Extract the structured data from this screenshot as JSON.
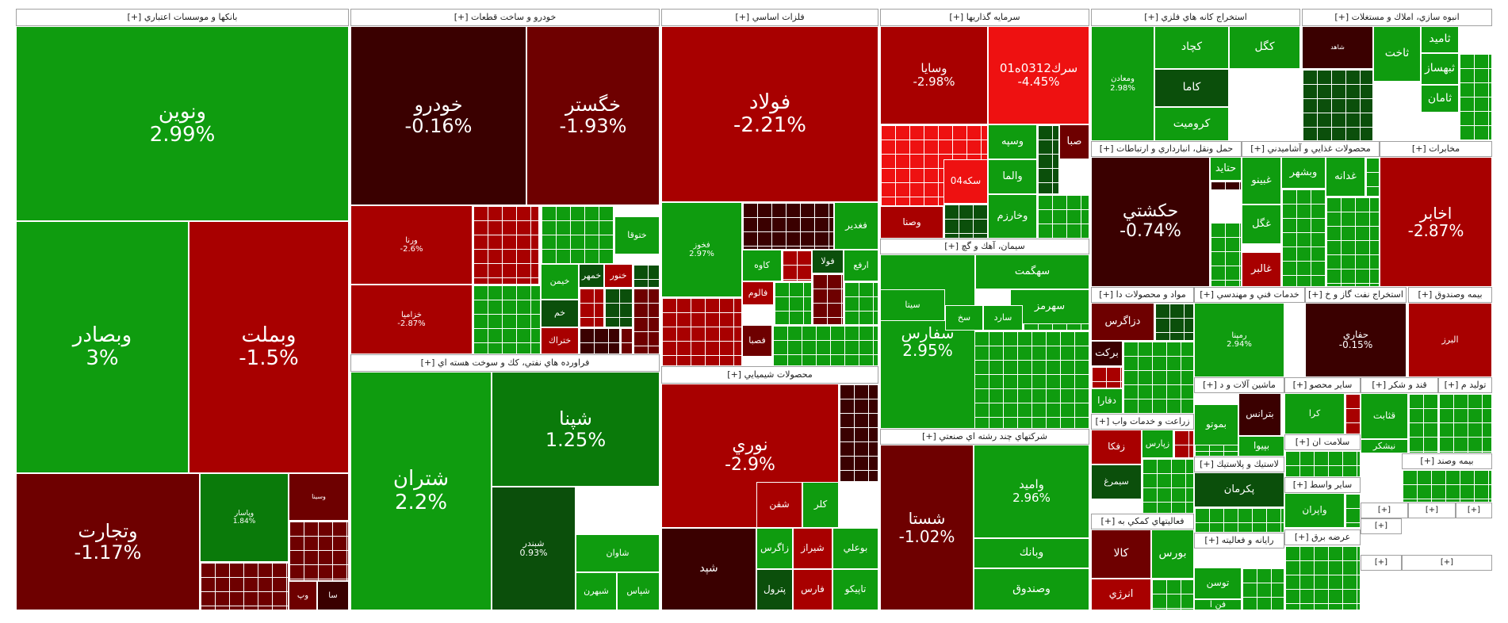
{
  "chart_data": {
    "type": "treemap",
    "colors": {
      "strong_up": "#0f9c0f",
      "mid_up": "#0a7a0a",
      "weak_up": "#0b4f0b",
      "strong_down": "#ee1111",
      "mid_down": "#a80000",
      "weak_down": "#6e0000",
      "flat_down": "#3a0000"
    },
    "sectors": [
      {
        "name": "بانكها و موسسات اعتباري [+]",
        "tiles": [
          {
            "symbol": "ونوين",
            "change": "2.99%",
            "color": "strong_up"
          },
          {
            "symbol": "وبصادر",
            "change": "3%",
            "color": "strong_up"
          },
          {
            "symbol": "وبملت",
            "change": "-1.5%",
            "color": "mid_down"
          },
          {
            "symbol": "وتجارت",
            "change": "-1.17%",
            "color": "weak_down"
          },
          {
            "symbol": "وپاسار",
            "change": "1.84%",
            "color": "mid_up"
          },
          {
            "symbol": "وسينا",
            "change": "",
            "color": "weak_down"
          },
          {
            "symbol": "وپ",
            "change": "",
            "color": "weak_down"
          },
          {
            "symbol": "سا",
            "change": "",
            "color": "flat_down"
          }
        ]
      },
      {
        "name": "خودرو و ساخت قطعات [+]",
        "tiles": [
          {
            "symbol": "خودرو",
            "change": "-0.16%",
            "color": "flat_down"
          },
          {
            "symbol": "خگستر",
            "change": "-1.93%",
            "color": "weak_down"
          },
          {
            "symbol": "ورنا",
            "change": "-2.6%",
            "color": "mid_down"
          },
          {
            "symbol": "خزامیا",
            "change": "-2.87%",
            "color": "mid_down"
          },
          {
            "symbol": "ختوقا",
            "change": "",
            "color": "strong_up"
          },
          {
            "symbol": "خيمن",
            "change": "",
            "color": "strong_up"
          },
          {
            "symbol": "خمهر",
            "change": "",
            "color": "weak_up"
          },
          {
            "symbol": "خنور",
            "change": "",
            "color": "mid_down"
          },
          {
            "symbol": "خم",
            "change": "",
            "color": "weak_up"
          },
          {
            "symbol": "ختراك",
            "change": "",
            "color": "mid_down"
          }
        ]
      },
      {
        "name": "فراورده هاي نفتي، كك و سوخت هسته اي [+]",
        "tiles": [
          {
            "symbol": "شتران",
            "change": "2.2%",
            "color": "strong_up"
          },
          {
            "symbol": "شپنا",
            "change": "1.25%",
            "color": "mid_up"
          },
          {
            "symbol": "شبندر",
            "change": "0.93%",
            "color": "weak_up"
          },
          {
            "symbol": "شاوان",
            "change": "",
            "color": "strong_up"
          },
          {
            "symbol": "شبهرن",
            "change": "",
            "color": "strong_up"
          },
          {
            "symbol": "شپاس",
            "change": "",
            "color": "strong_up"
          }
        ]
      },
      {
        "name": "فلزات اساسي [+]",
        "tiles": [
          {
            "symbol": "فولاد",
            "change": "-2.21%",
            "color": "mid_down"
          },
          {
            "symbol": "فخوز",
            "change": "2.97%",
            "color": "strong_up"
          },
          {
            "symbol": "فغدير",
            "change": "",
            "color": "strong_up"
          },
          {
            "symbol": "كاوه",
            "change": "",
            "color": "strong_up"
          },
          {
            "symbol": "فالوم",
            "change": "",
            "color": "mid_down"
          },
          {
            "symbol": "فولا",
            "change": "",
            "color": "weak_up"
          },
          {
            "symbol": "ارفع",
            "change": "",
            "color": "strong_up"
          },
          {
            "symbol": "فصبا",
            "change": "",
            "color": "weak_down"
          }
        ]
      },
      {
        "name": "محصولات شيميايي [+]",
        "tiles": [
          {
            "symbol": "نوري",
            "change": "-2.9%",
            "color": "mid_down"
          },
          {
            "symbol": "شپد",
            "change": "",
            "color": "flat_down"
          },
          {
            "symbol": "زاگرس",
            "change": "",
            "color": "strong_up"
          },
          {
            "symbol": "شيراز",
            "change": "",
            "color": "mid_down"
          },
          {
            "symbol": "پترول",
            "change": "",
            "color": "weak_up"
          },
          {
            "symbol": "فارس",
            "change": "",
            "color": "mid_down"
          },
          {
            "symbol": "بوعلي",
            "change": "",
            "color": "strong_up"
          },
          {
            "symbol": "تاپيكو",
            "change": "",
            "color": "strong_up"
          },
          {
            "symbol": "شفن",
            "change": "",
            "color": "mid_down"
          },
          {
            "symbol": "كلر",
            "change": "",
            "color": "strong_up"
          },
          {
            "symbol": "شغارس",
            "change": "",
            "color": "strong_up"
          },
          {
            "symbol": "پارس",
            "change": "",
            "color": "mid_down"
          },
          {
            "symbol": "آريا",
            "change": "",
            "color": "strong_up"
          }
        ]
      },
      {
        "name": "سرمايه گذاريها [+]",
        "tiles": [
          {
            "symbol": "وسايا",
            "change": "-2.98%",
            "color": "mid_down"
          },
          {
            "symbol": "سرك0312ه01",
            "change": "-4.45%",
            "color": "strong_down"
          },
          {
            "symbol": "وسپه",
            "change": "",
            "color": "strong_up"
          },
          {
            "symbol": "صبا",
            "change": "",
            "color": "weak_down"
          },
          {
            "symbol": "والما",
            "change": "",
            "color": "strong_up"
          },
          {
            "symbol": "وخارزم",
            "change": "",
            "color": "strong_up"
          },
          {
            "symbol": "وصنا",
            "change": "",
            "color": "mid_down"
          },
          {
            "symbol": "سكه04",
            "change": "",
            "color": "strong_down"
          }
        ]
      },
      {
        "name": "سيمان، آهك و گچ [+]",
        "tiles": [
          {
            "symbol": "سفارس",
            "change": "2.95%",
            "color": "strong_up"
          },
          {
            "symbol": "سهگمت",
            "change": "",
            "color": "strong_up"
          },
          {
            "symbol": "سهرمز",
            "change": "",
            "color": "strong_up"
          },
          {
            "symbol": "سيتا",
            "change": "",
            "color": "strong_up"
          },
          {
            "symbol": "سخ",
            "change": "",
            "color": "strong_up"
          },
          {
            "symbol": "سارد",
            "change": "",
            "color": "strong_up"
          }
        ]
      },
      {
        "name": "شركتهاي چند رشته اي صنعتي [+]",
        "tiles": [
          {
            "symbol": "شستا",
            "change": "-1.02%",
            "color": "weak_down"
          },
          {
            "symbol": "وامید",
            "change": "2.96%",
            "color": "strong_up"
          },
          {
            "symbol": "وبانك",
            "change": "",
            "color": "strong_up"
          },
          {
            "symbol": "وصندوق",
            "change": "",
            "color": "strong_up"
          }
        ]
      },
      {
        "name": "استخراج كانه هاي فلزي [+]",
        "tiles": [
          {
            "symbol": "ومعادن",
            "change": "2.98%",
            "color": "strong_up"
          },
          {
            "symbol": "كچاد",
            "change": "",
            "color": "strong_up"
          },
          {
            "symbol": "كگل",
            "change": "",
            "color": "strong_up"
          },
          {
            "symbol": "كاما",
            "change": "",
            "color": "weak_up"
          },
          {
            "symbol": "كرومیت",
            "change": "",
            "color": "strong_up"
          }
        ]
      },
      {
        "name": "انبوه سازي، املاك و مستغلات [+]",
        "tiles": [
          {
            "symbol": "شاهد",
            "change": "",
            "color": "flat_down"
          },
          {
            "symbol": "ثاخت",
            "change": "",
            "color": "strong_up"
          },
          {
            "symbol": "ثامید",
            "change": "",
            "color": "strong_up"
          },
          {
            "symbol": "ثبهساز",
            "change": "",
            "color": "strong_up"
          },
          {
            "symbol": "ثامان",
            "change": "",
            "color": "strong_up"
          }
        ]
      },
      {
        "name": "حمل ونقل، انبارداري و ارتباطات [+]",
        "tiles": [
          {
            "symbol": "حكشتي",
            "change": "-0.74%",
            "color": "flat_down"
          },
          {
            "symbol": "حتايد",
            "change": "",
            "color": "strong_up"
          }
        ]
      },
      {
        "name": "محصولات غذايي و آشاميدني [+]",
        "tiles": [
          {
            "symbol": "غبينو",
            "change": "",
            "color": "strong_up"
          },
          {
            "symbol": "وبشهر",
            "change": "",
            "color": "strong_up"
          },
          {
            "symbol": "غدانه",
            "change": "",
            "color": "strong_up"
          },
          {
            "symbol": "غگل",
            "change": "",
            "color": "strong_up"
          },
          {
            "symbol": "غالبر",
            "change": "",
            "color": "mid_down"
          }
        ]
      },
      {
        "name": "مخابرات [+]",
        "tiles": [
          {
            "symbol": "اخابر",
            "change": "-2.87%",
            "color": "mid_down"
          }
        ]
      },
      {
        "name": "مواد و محصولات دا [+]",
        "tiles": [
          {
            "symbol": "دزاگرس",
            "change": "",
            "color": "weak_down"
          },
          {
            "symbol": "بركت",
            "change": "",
            "color": "flat_down"
          },
          {
            "symbol": "دفارا",
            "change": "",
            "color": "strong_up"
          }
        ]
      },
      {
        "name": "خدمات فني و مهندسي [+]",
        "tiles": [
          {
            "symbol": "رمپنا",
            "change": "2.94%",
            "color": "strong_up"
          }
        ]
      },
      {
        "name": "استخراج نفت گاز و خ [+]",
        "tiles": [
          {
            "symbol": "حفاري",
            "change": "-0.15%",
            "color": "flat_down"
          }
        ]
      },
      {
        "name": "بيمه وصندوق [+]",
        "tiles": [
          {
            "symbol": "البرز",
            "change": "",
            "color": "mid_down"
          }
        ]
      },
      {
        "name": "زراعت و خدمات واب [+]",
        "tiles": [
          {
            "symbol": "زفكا",
            "change": "",
            "color": "mid_down"
          },
          {
            "symbol": "سيمرغ",
            "change": "",
            "color": "weak_up"
          },
          {
            "symbol": "زپارس",
            "change": "",
            "color": "strong_up"
          }
        ]
      },
      {
        "name": "ماشين آلات و د [+]",
        "tiles": [
          {
            "symbol": "بترانس",
            "change": "",
            "color": "flat_down"
          },
          {
            "symbol": "بموتو",
            "change": "",
            "color": "strong_up"
          },
          {
            "symbol": "بپیوا",
            "change": "",
            "color": "strong_up"
          }
        ]
      },
      {
        "name": "فعاليتهاي كمكي به [+]",
        "tiles": [
          {
            "symbol": "كالا",
            "change": "",
            "color": "weak_down"
          },
          {
            "symbol": "بورس",
            "change": "",
            "color": "strong_up"
          },
          {
            "symbol": "انرژي",
            "change": "",
            "color": "mid_down"
          }
        ]
      },
      {
        "name": "قند و شكر [+]",
        "tiles": [
          {
            "symbol": "قثابت",
            "change": "",
            "color": "strong_up"
          },
          {
            "symbol": "نيشكر",
            "change": "",
            "color": "strong_up"
          }
        ]
      },
      {
        "name": "لاستيك و پلاستيك [+]",
        "tiles": [
          {
            "symbol": "پكرمان",
            "change": "",
            "color": "weak_up"
          }
        ]
      },
      {
        "name": "رايانه و فعاليته [+]",
        "tiles": [
          {
            "symbol": "توسن",
            "change": "",
            "color": "strong_up"
          },
          {
            "symbol": "فن ا",
            "change": "",
            "color": "strong_up"
          }
        ]
      },
      {
        "name": "ساير محصو [+]",
        "tiles": [
          {
            "symbol": "كرا",
            "change": "",
            "color": "strong_up"
          }
        ]
      },
      {
        "name": "ساير واسط [+]",
        "tiles": [
          {
            "symbol": "واپران",
            "change": "",
            "color": "strong_up"
          }
        ]
      },
      {
        "name": "سلامت ان [+]",
        "tiles": []
      },
      {
        "name": "عرضه برق [+]",
        "tiles": []
      },
      {
        "name": "توليد م [+]",
        "tiles": []
      },
      {
        "name": "بيمه وصند [+]",
        "tiles": []
      }
    ]
  }
}
